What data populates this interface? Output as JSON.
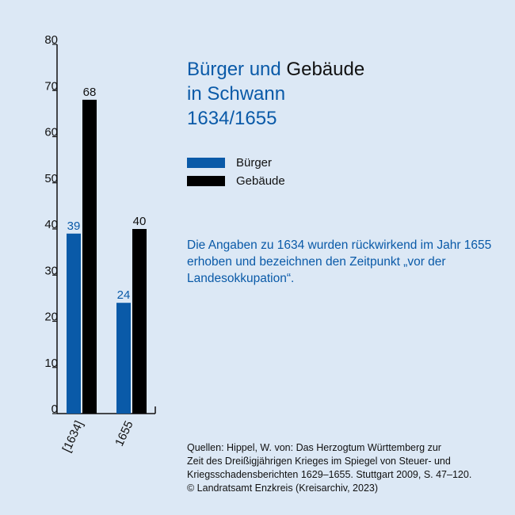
{
  "title": {
    "part1": "Bürger und ",
    "part2": "Gebäude",
    "line2": "in Schwann",
    "line3": "1634/1655"
  },
  "colors": {
    "buerger": "#0a5aa8",
    "gebaeude": "#000000",
    "background": "#dce8f5"
  },
  "chart_data": {
    "type": "bar",
    "categories": [
      "[1634]",
      "1655"
    ],
    "series": [
      {
        "name": "Bürger",
        "values": [
          39,
          24
        ]
      },
      {
        "name": "Gebäude",
        "values": [
          68,
          40
        ]
      }
    ],
    "ylim": [
      0,
      80
    ],
    "yticks": [
      0,
      10,
      20,
      30,
      40,
      50,
      60,
      70,
      80
    ],
    "legend_position": "right",
    "grid": false
  },
  "note": "Die Angaben zu 1634 wurden rückwirkend im Jahr 1655 erhoben und bezeichnen den Zeitpunkt „vor der Landesokkupation“.",
  "sources": {
    "line1": "Quellen: Hippel, W. von: Das Herzogtum Württemberg zur",
    "line2": "Zeit des Dreißigjährigen Krieges im Spiegel von Steuer- und",
    "line3": "Kriegsschadensberichten 1629–1655. Stuttgart 2009, S. 47–120.",
    "line4": "© Landratsamt Enzkreis (Kreisarchiv, 2023)"
  }
}
